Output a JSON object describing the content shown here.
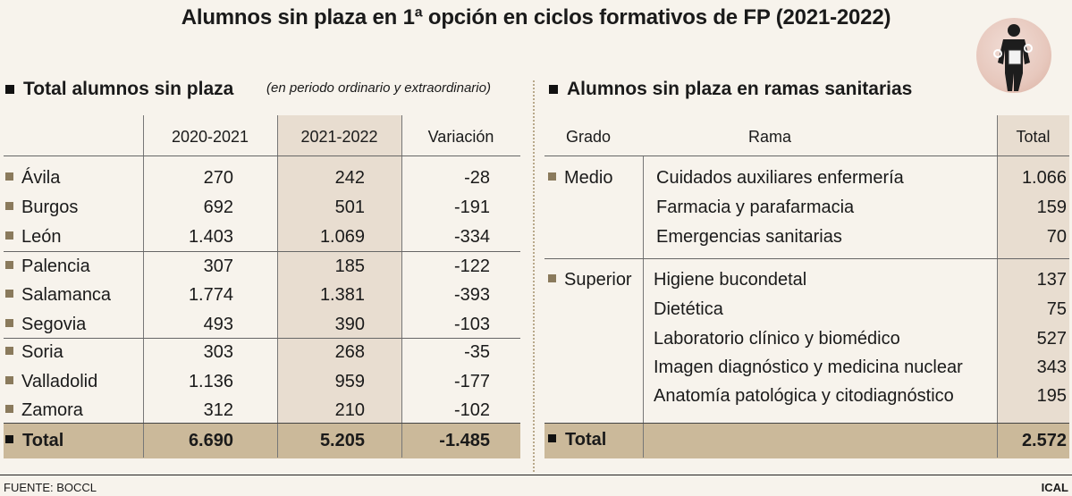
{
  "title": "Alumnos sin plaza en 1ª opción en ciclos formativos de FP (2021-2022)",
  "left": {
    "heading": "Total alumnos sin plaza",
    "note": "(en periodo ordinario y extraordinario)",
    "columns": [
      "2020-2021",
      "2021-2022",
      "Variación"
    ],
    "rows": [
      {
        "name": "Ávila",
        "y2020": "270",
        "y2021": "242",
        "var": "-28"
      },
      {
        "name": "Burgos",
        "y2020": "692",
        "y2021": "501",
        "var": "-191"
      },
      {
        "name": "León",
        "y2020": "1.403",
        "y2021": "1.069",
        "var": "-334"
      },
      {
        "name": "Palencia",
        "y2020": "307",
        "y2021": "185",
        "var": "-122"
      },
      {
        "name": "Salamanca",
        "y2020": "1.774",
        "y2021": "1.381",
        "var": "-393"
      },
      {
        "name": "Segovia",
        "y2020": "493",
        "y2021": "390",
        "var": "-103"
      },
      {
        "name": "Soria",
        "y2020": "303",
        "y2021": "268",
        "var": "-35"
      },
      {
        "name": "Valladolid",
        "y2020": "1.136",
        "y2021": "959",
        "var": "-177"
      },
      {
        "name": "Zamora",
        "y2020": "312",
        "y2021": "210",
        "var": "-102"
      }
    ],
    "total": {
      "label": "Total",
      "y2020": "6.690",
      "y2021": "5.205",
      "var": "-1.485"
    }
  },
  "right": {
    "heading": "Alumnos sin plaza en ramas sanitarias",
    "columns": [
      "Grado",
      "Rama",
      "Total"
    ],
    "groups": [
      {
        "grado": "Medio",
        "items": [
          {
            "rama": "Cuidados auxiliares enfermería",
            "total": "1.066"
          },
          {
            "rama": "Farmacia y parafarmacia",
            "total": "159"
          },
          {
            "rama": "Emergencias sanitarias",
            "total": "70"
          }
        ]
      },
      {
        "grado": "Superior",
        "items": [
          {
            "rama": "Higiene bucondetal",
            "total": "137"
          },
          {
            "rama": "Dietética",
            "total": "75"
          },
          {
            "rama": "Laboratorio clínico y biomédico",
            "total": "527"
          },
          {
            "rama": "Imagen diagnóstico y medicina nuclear",
            "total": "343"
          },
          {
            "rama": "Anatomía patológica y citodiagnóstico",
            "total": "195"
          }
        ]
      }
    ],
    "total": {
      "label": "Total",
      "value": "2.572"
    }
  },
  "source": "FUENTE: BOCCL",
  "credit": "ICAL",
  "colors": {
    "shade": "#e8ddd0",
    "total_bar": "#cbb99a",
    "bullet": "#8a7a5c",
    "background": "#f7f3ec"
  },
  "logo_icon": "worker-with-tools-icon"
}
